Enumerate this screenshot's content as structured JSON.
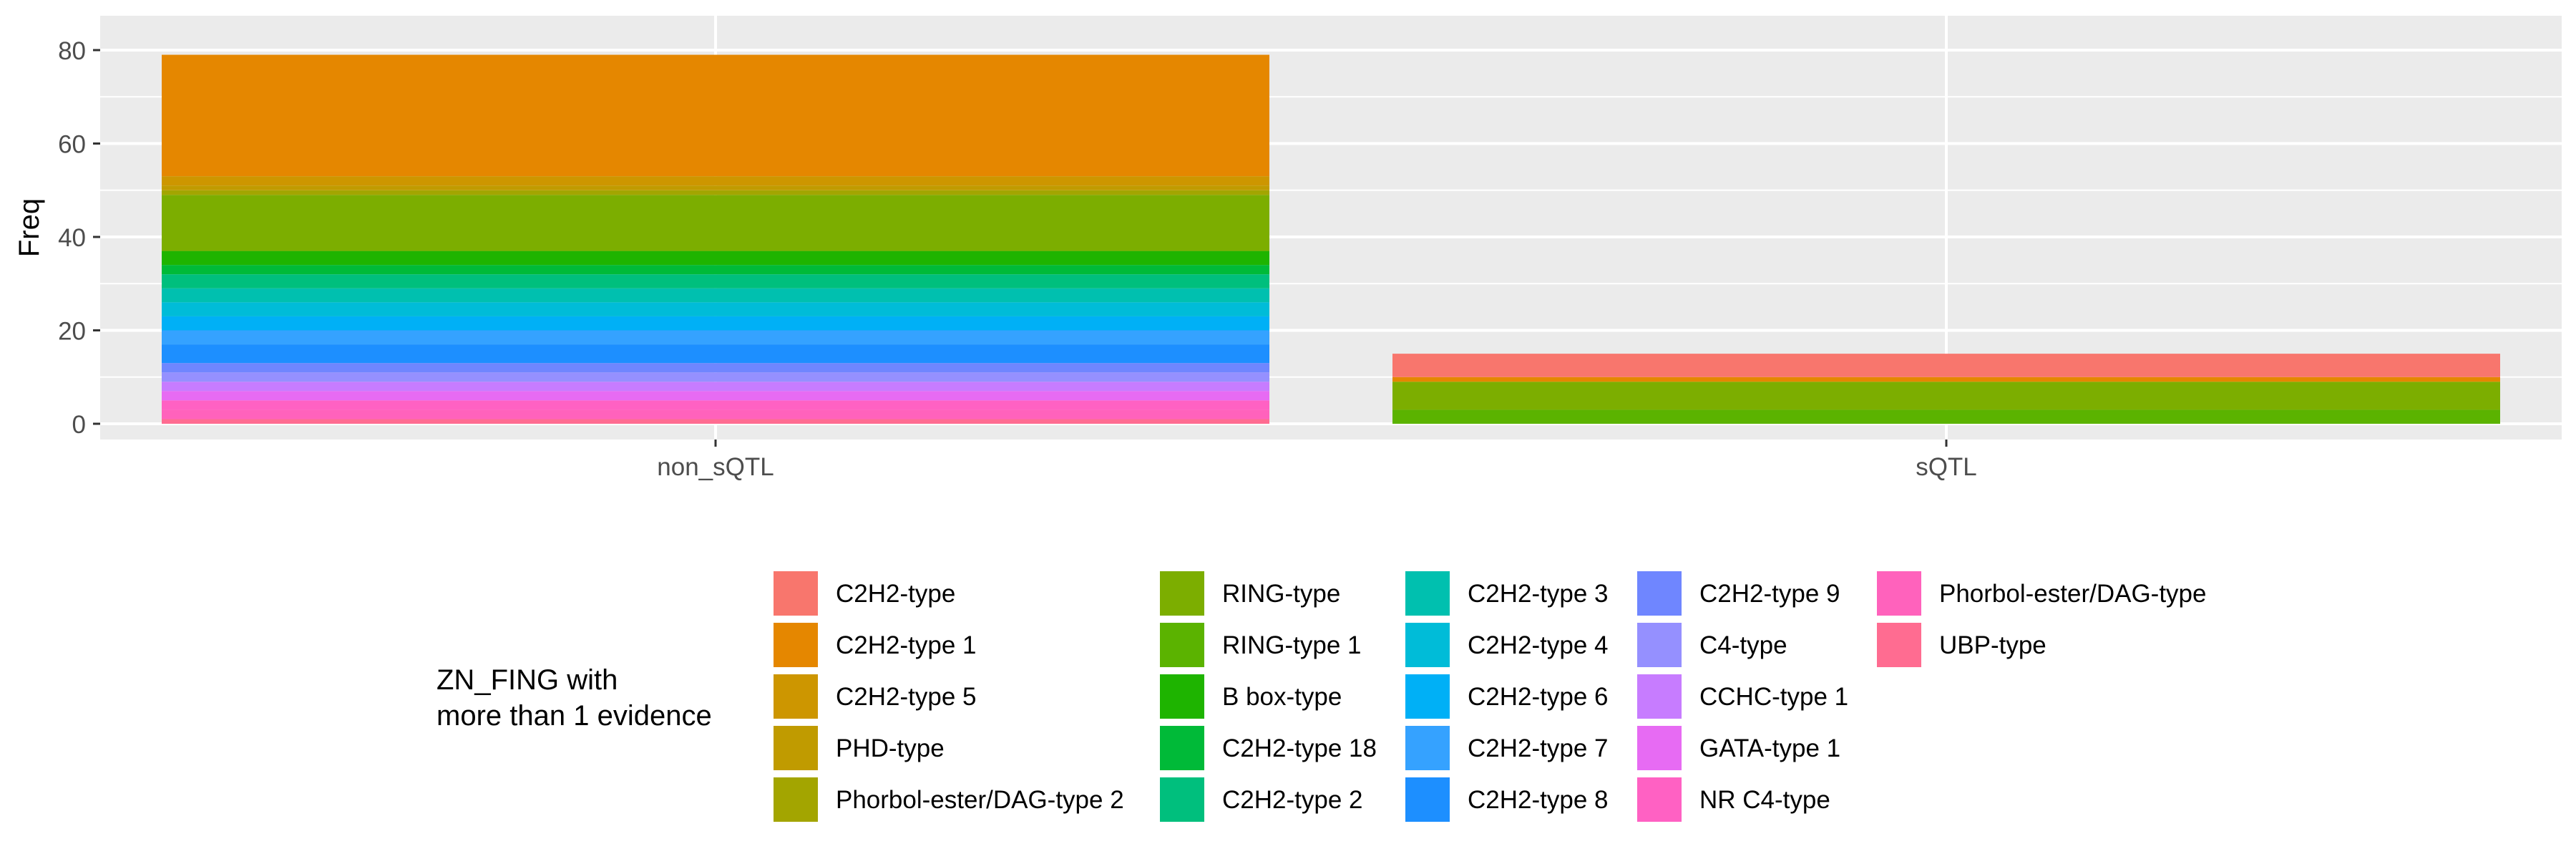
{
  "chart_data": {
    "type": "bar",
    "stacked": true,
    "title": "",
    "xlabel": "",
    "ylabel": "Freq",
    "ylim": [
      0,
      85
    ],
    "yticks": [
      0,
      20,
      40,
      60,
      80
    ],
    "grid": true,
    "legend_placement": "bottom",
    "categories": [
      "non_sQTL",
      "sQTL"
    ],
    "legend": {
      "title_lines": [
        "ZN_FING with",
        "more than 1 evidence"
      ]
    },
    "series": [
      {
        "name": "C2H2-type",
        "color": "#F8766D",
        "values": [
          0,
          5
        ]
      },
      {
        "name": "C2H2-type 1",
        "color": "#E58700",
        "values": [
          26,
          1
        ]
      },
      {
        "name": "C2H2-type 5",
        "color": "#CD9600",
        "values": [
          2,
          0
        ]
      },
      {
        "name": "PHD-type",
        "color": "#C09B00",
        "values": [
          1,
          0
        ]
      },
      {
        "name": "Phorbol-ester/DAG-type 2",
        "color": "#A3A500",
        "values": [
          1,
          0
        ]
      },
      {
        "name": "RING-type",
        "color": "#7CAE00",
        "values": [
          12,
          6
        ]
      },
      {
        "name": "RING-type 1",
        "color": "#5BB300",
        "values": [
          0,
          3
        ]
      },
      {
        "name": "B box-type",
        "color": "#1EB400",
        "values": [
          3,
          0
        ]
      },
      {
        "name": "C2H2-type 18",
        "color": "#00BA38",
        "values": [
          2,
          0
        ]
      },
      {
        "name": "C2H2-type 2",
        "color": "#00BF7D",
        "values": [
          3,
          0
        ]
      },
      {
        "name": "C2H2-type 3",
        "color": "#00C0AF",
        "values": [
          3,
          0
        ]
      },
      {
        "name": "C2H2-type 4",
        "color": "#00BCD8",
        "values": [
          3,
          0
        ]
      },
      {
        "name": "C2H2-type 6",
        "color": "#00B0F6",
        "values": [
          3,
          0
        ]
      },
      {
        "name": "C2H2-type 7",
        "color": "#35A2FF",
        "values": [
          3,
          0
        ]
      },
      {
        "name": "C2H2-type 8",
        "color": "#1D8FFF",
        "values": [
          4,
          0
        ]
      },
      {
        "name": "C2H2-type 9",
        "color": "#6F86FF",
        "values": [
          2,
          0
        ]
      },
      {
        "name": "C4-type",
        "color": "#9590FF",
        "values": [
          2,
          0
        ]
      },
      {
        "name": "CCHC-type 1",
        "color": "#C77CFF",
        "values": [
          2,
          0
        ]
      },
      {
        "name": "GATA-type 1",
        "color": "#E76BF3",
        "values": [
          2,
          0
        ]
      },
      {
        "name": "NR C4-type",
        "color": "#FF61C3",
        "values": [
          2,
          0
        ]
      },
      {
        "name": "Phorbol-ester/DAG-type",
        "color": "#FF62BC",
        "values": [
          2,
          0
        ]
      },
      {
        "name": "UBP-type",
        "color": "#FF6C91",
        "values": [
          1,
          0
        ]
      }
    ]
  }
}
